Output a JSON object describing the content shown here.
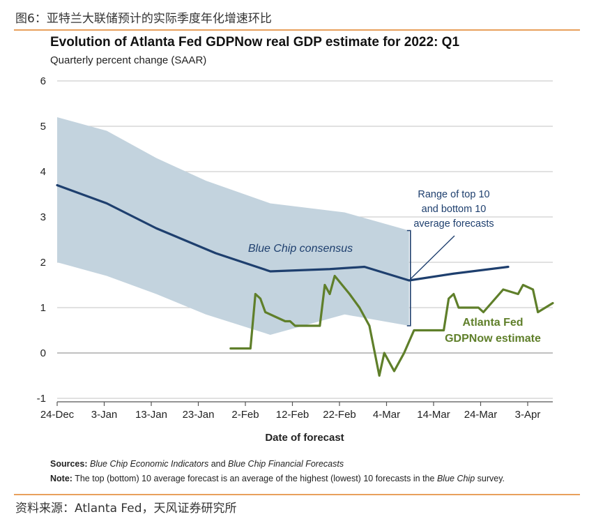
{
  "caption": "图6：亚特兰大联储预计的实际季度年化增速环比",
  "title": "Evolution of Atlanta Fed GDPNow real GDP estimate for 2022: Q1",
  "subtitle": "Quarterly percent change (SAAR)",
  "notes": {
    "sources_label": "Sources:",
    "sources_text_1": "Blue Chip Economic Indicators",
    "sources_and": "and",
    "sources_text_2": "Blue Chip Financial Forecasts",
    "note_label": "Note:",
    "note_text": "The top (bottom) 10 average forecast is an average of the highest (lowest) 10 forecasts in the",
    "note_italic": "Blue Chip",
    "note_end": "survey."
  },
  "source_line": "资料来源：Atlanta Fed，天风证券研究所",
  "chart_data": {
    "type": "line",
    "xlabel": "Date of forecast",
    "ylabel": "",
    "ylim": [
      -1,
      6
    ],
    "yticks": [
      -1,
      0,
      1,
      2,
      3,
      4,
      5,
      6
    ],
    "xticks": [
      "24-Dec",
      "3-Jan",
      "13-Jan",
      "23-Jan",
      "2-Feb",
      "12-Feb",
      "22-Feb",
      "4-Mar",
      "14-Mar",
      "24-Mar",
      "3-Apr"
    ],
    "grid": "horizontal",
    "colors": {
      "consensus": "#1e3f6e",
      "band": "#c3d3de",
      "gdpnow": "#5f7f2a"
    },
    "band": {
      "name": "Range of top 10 and bottom 10 average forecasts",
      "upper": [
        [
          0,
          5.2
        ],
        [
          10,
          4.9
        ],
        [
          20,
          4.3
        ],
        [
          30,
          3.8
        ],
        [
          43,
          3.3
        ],
        [
          58,
          3.1
        ],
        [
          71,
          2.7
        ]
      ],
      "lower": [
        [
          0,
          2.0
        ],
        [
          10,
          1.7
        ],
        [
          20,
          1.3
        ],
        [
          30,
          0.85
        ],
        [
          43,
          0.4
        ],
        [
          58,
          0.85
        ],
        [
          71,
          0.6
        ]
      ]
    },
    "series": [
      {
        "name": "Blue Chip consensus",
        "points": [
          [
            0,
            3.7
          ],
          [
            10,
            3.3
          ],
          [
            20,
            2.75
          ],
          [
            32,
            2.2
          ],
          [
            43,
            1.8
          ],
          [
            55,
            1.85
          ],
          [
            62,
            1.9
          ],
          [
            71,
            1.6
          ],
          [
            80,
            1.75
          ],
          [
            91,
            1.9
          ]
        ]
      },
      {
        "name": "Atlanta Fed GDPNow estimate",
        "points": [
          [
            35,
            0.1
          ],
          [
            39,
            0.1
          ],
          [
            40,
            1.3
          ],
          [
            41,
            1.2
          ],
          [
            42,
            0.9
          ],
          [
            44,
            0.8
          ],
          [
            46,
            0.7
          ],
          [
            47,
            0.7
          ],
          [
            48,
            0.6
          ],
          [
            53,
            0.6
          ],
          [
            54,
            1.5
          ],
          [
            55,
            1.3
          ],
          [
            56,
            1.7
          ],
          [
            59,
            1.3
          ],
          [
            61,
            1.0
          ],
          [
            63,
            0.6
          ],
          [
            65,
            -0.5
          ],
          [
            66,
            0.0
          ],
          [
            68,
            -0.4
          ],
          [
            70,
            0.0
          ],
          [
            72,
            0.5
          ],
          [
            78,
            0.5
          ],
          [
            79,
            1.2
          ],
          [
            80,
            1.3
          ],
          [
            81,
            1.0
          ],
          [
            85,
            1.0
          ],
          [
            86,
            0.9
          ],
          [
            90,
            1.4
          ],
          [
            93,
            1.3
          ],
          [
            94,
            1.5
          ],
          [
            96,
            1.4
          ],
          [
            97,
            0.9
          ],
          [
            100,
            1.1
          ]
        ]
      }
    ],
    "annotations": {
      "consensus_label": "Blue Chip consensus",
      "range_label_1": "Range of top 10",
      "range_label_2": "and bottom 10",
      "range_label_3": "average forecasts",
      "gdpnow_label_1": "Atlanta Fed",
      "gdpnow_label_2": "GDPNow estimate"
    }
  }
}
